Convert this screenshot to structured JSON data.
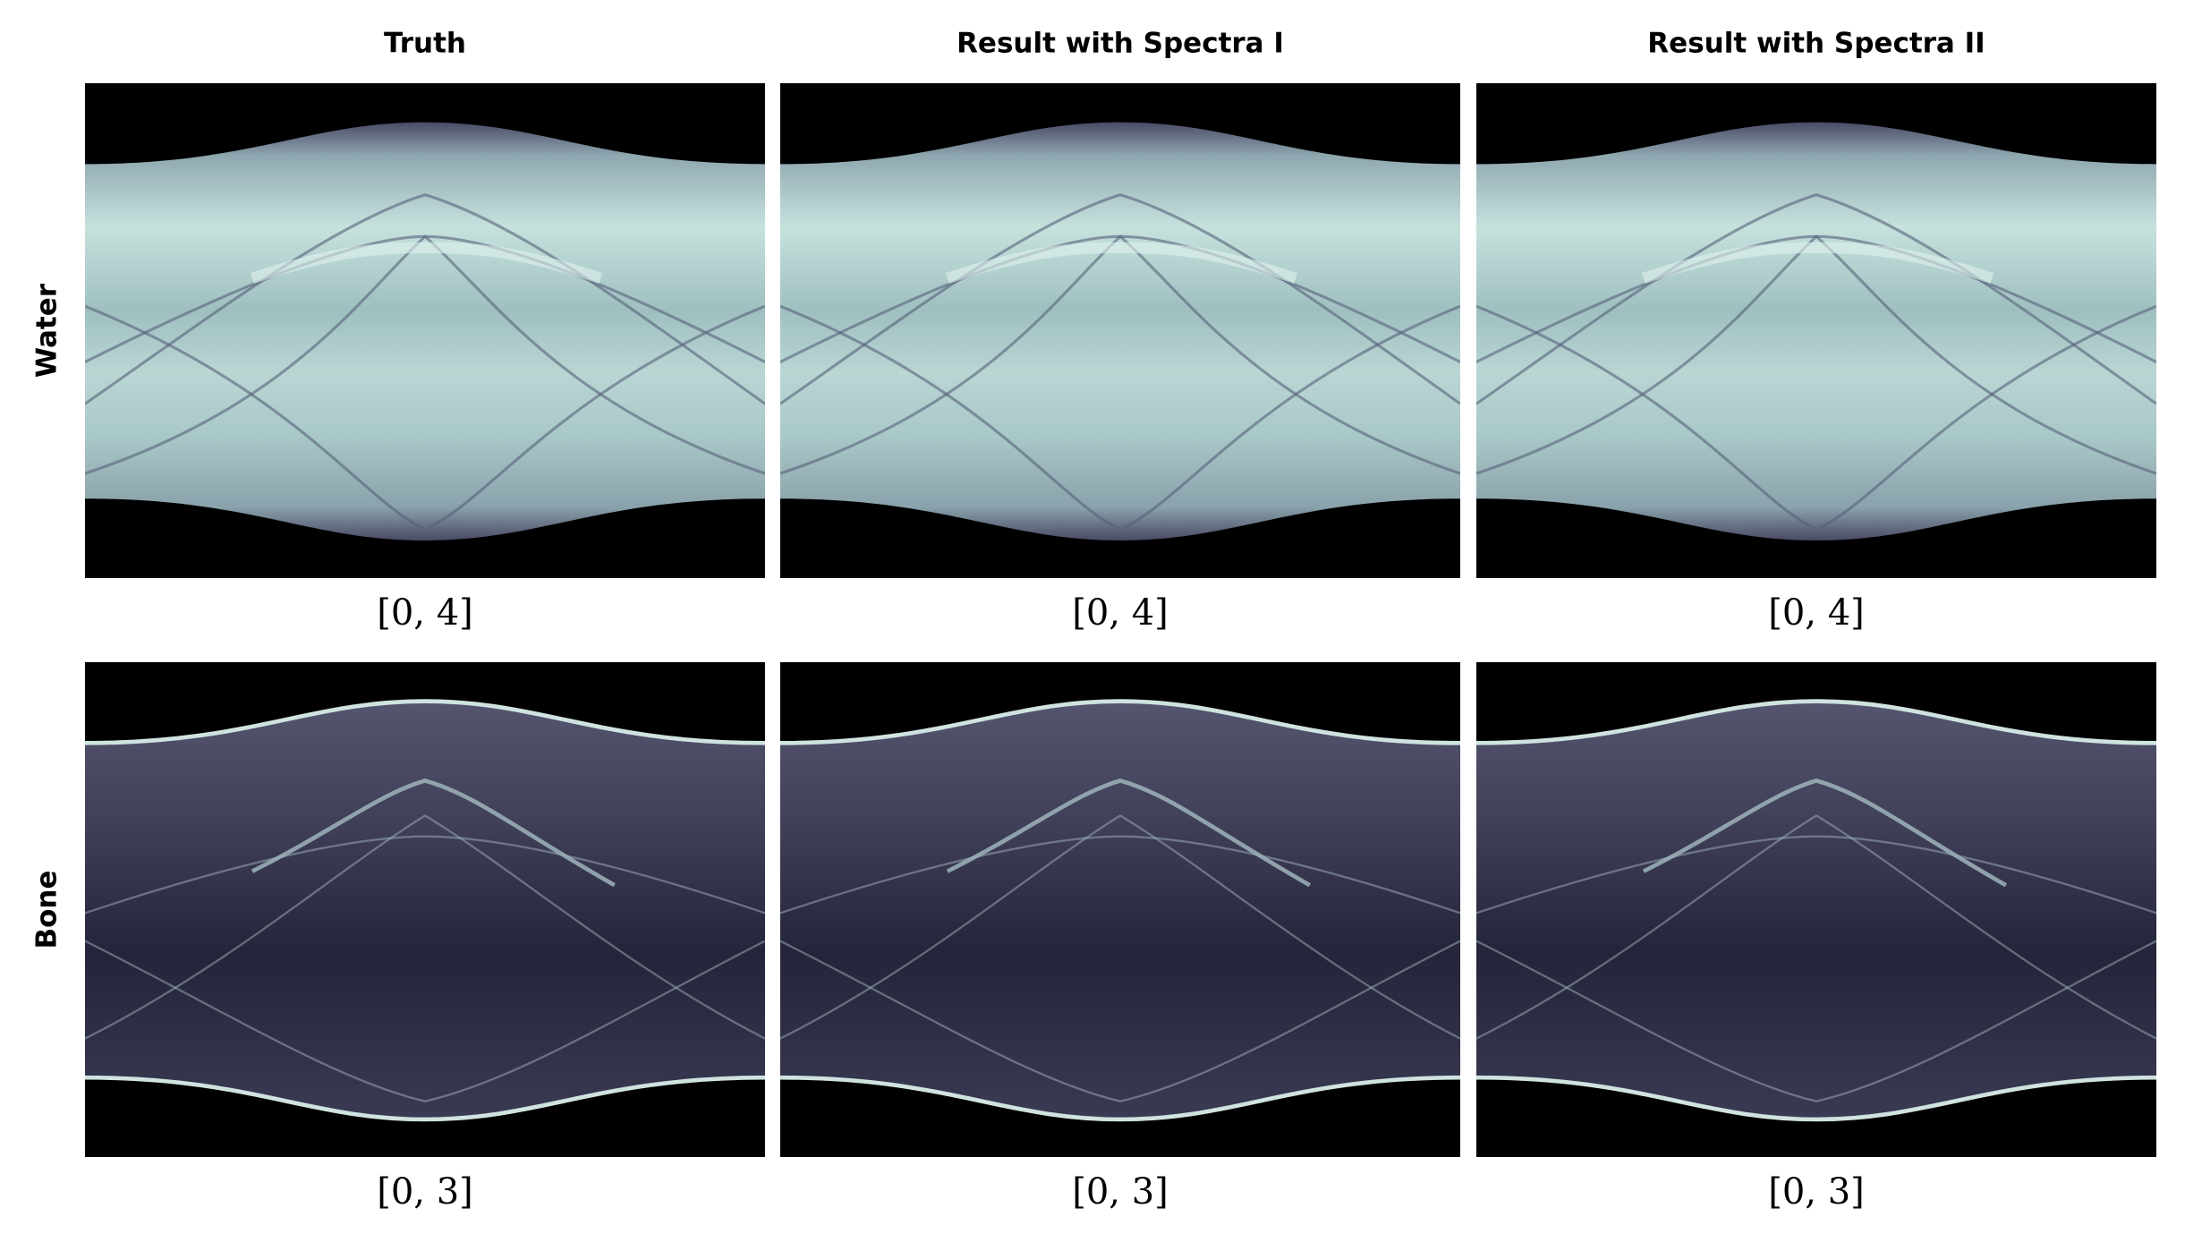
{
  "columns": [
    "Truth",
    "Result with Spectra I",
    "Result with Spectra II"
  ],
  "rows": [
    {
      "label": "Water",
      "ranges": [
        "[0, 4]",
        "[0, 4]",
        "[0, 4]"
      ]
    },
    {
      "label": "Bone",
      "ranges": [
        "[0, 3]",
        "[0, 3]",
        "[0, 3]"
      ]
    }
  ]
}
